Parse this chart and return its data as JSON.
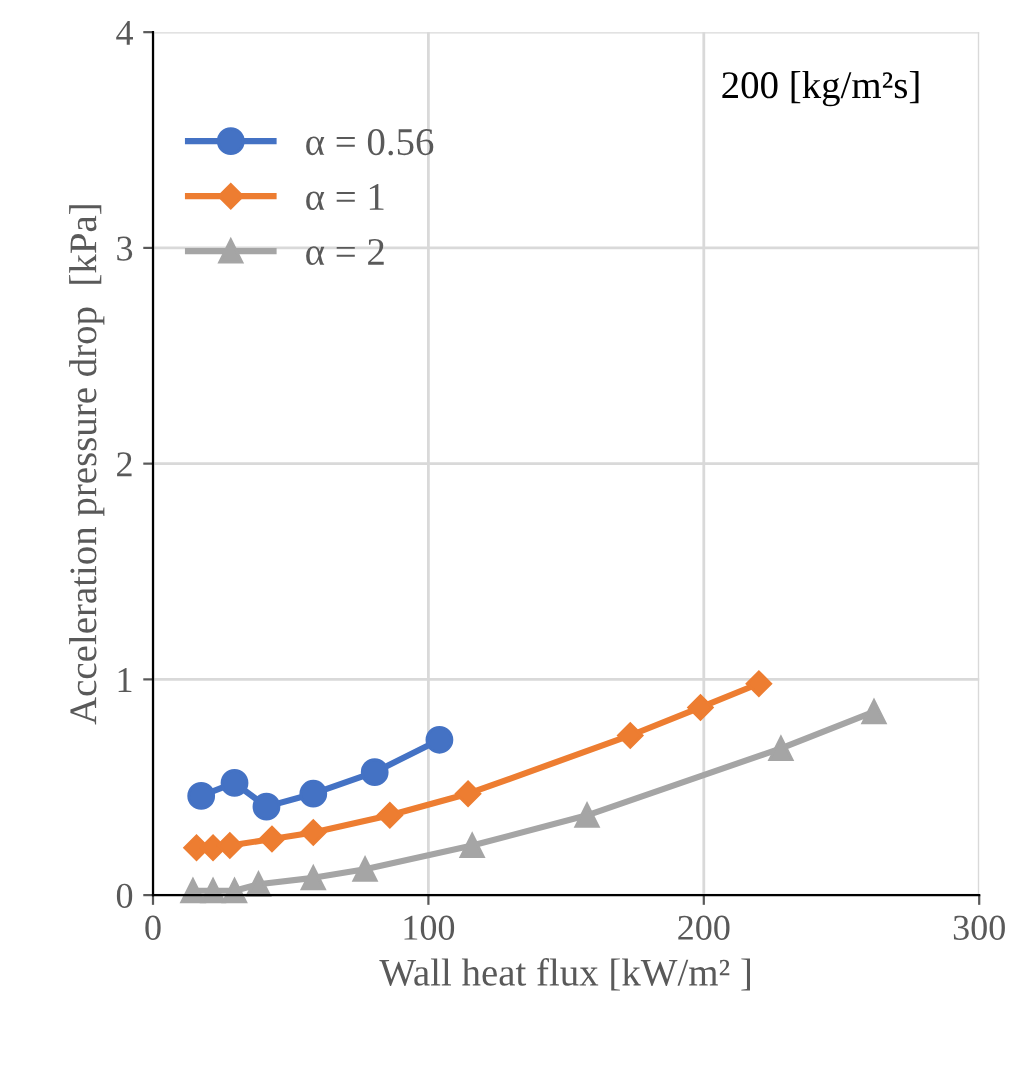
{
  "chart_data": {
    "type": "line",
    "xlabel": "Wall heat flux [kW/m² ]",
    "ylabel": "Acceleration pressure drop  [kPa]",
    "annotations": [
      "200 [kg/m²s]"
    ],
    "xlim": [
      0,
      300
    ],
    "xticks": [
      0,
      100,
      200,
      300
    ],
    "ylim": [
      0,
      4
    ],
    "yticks": [
      0,
      1,
      2,
      3,
      4
    ],
    "grid": true,
    "legend": "top left",
    "series": [
      {
        "name": "α = 0.56",
        "color": "#4472c4",
        "marker": "circle",
        "x": [
          17.5,
          29.6,
          41.2,
          58.2,
          80.5,
          104
        ],
        "values": [
          0.46,
          0.52,
          0.41,
          0.47,
          0.57,
          0.72
        ]
      },
      {
        "name": "α = 1",
        "color": "#ed7d31",
        "marker": "diamond",
        "x": [
          15.8,
          21.8,
          27.9,
          43.2,
          58.2,
          86,
          114.4,
          173.3,
          198.8,
          220
        ],
        "values": [
          0.22,
          0.22,
          0.23,
          0.26,
          0.29,
          0.37,
          0.47,
          0.74,
          0.87,
          0.98
        ]
      },
      {
        "name": "α = 2",
        "color": "#a5a5a5",
        "marker": "triangle",
        "x": [
          14.5,
          21.8,
          29.6,
          38.3,
          58.2,
          77,
          115.9,
          157.6,
          228,
          261.8
        ],
        "values": [
          0.02,
          0.02,
          0.02,
          0.05,
          0.08,
          0.12,
          0.23,
          0.37,
          0.68,
          0.85
        ]
      }
    ]
  }
}
